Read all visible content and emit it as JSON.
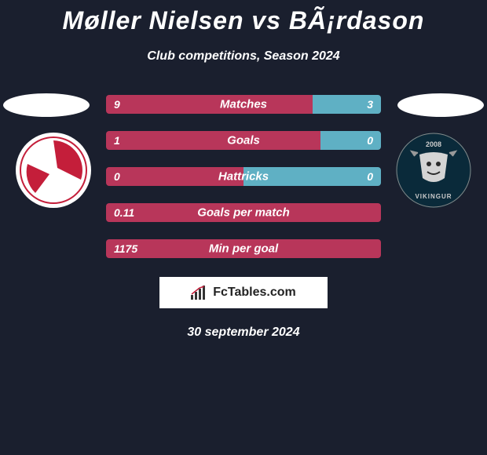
{
  "title": "Møller Nielsen vs BÃ¡rdason",
  "subtitle": "Club competitions, Season 2024",
  "date": "30 september 2024",
  "brand": "FcTables.com",
  "colors": {
    "left_bar": "#b8365a",
    "right_bar": "#5fb0c4",
    "background": "#1a1f2e"
  },
  "logo_left": {
    "bg": "#ffffff",
    "accent": "#c41e3a"
  },
  "logo_right": {
    "bg": "#0a2a3a",
    "text": "2008",
    "name": "VIKINGUR"
  },
  "stats": [
    {
      "label": "Matches",
      "left_val": "9",
      "right_val": "3",
      "left_pct": 75
    },
    {
      "label": "Goals",
      "left_val": "1",
      "right_val": "0",
      "left_pct": 78
    },
    {
      "label": "Hattricks",
      "left_val": "0",
      "right_val": "0",
      "left_pct": 50
    },
    {
      "label": "Goals per match",
      "left_val": "0.11",
      "right_val": "",
      "left_pct": 100
    },
    {
      "label": "Min per goal",
      "left_val": "1175",
      "right_val": "",
      "left_pct": 100
    }
  ]
}
